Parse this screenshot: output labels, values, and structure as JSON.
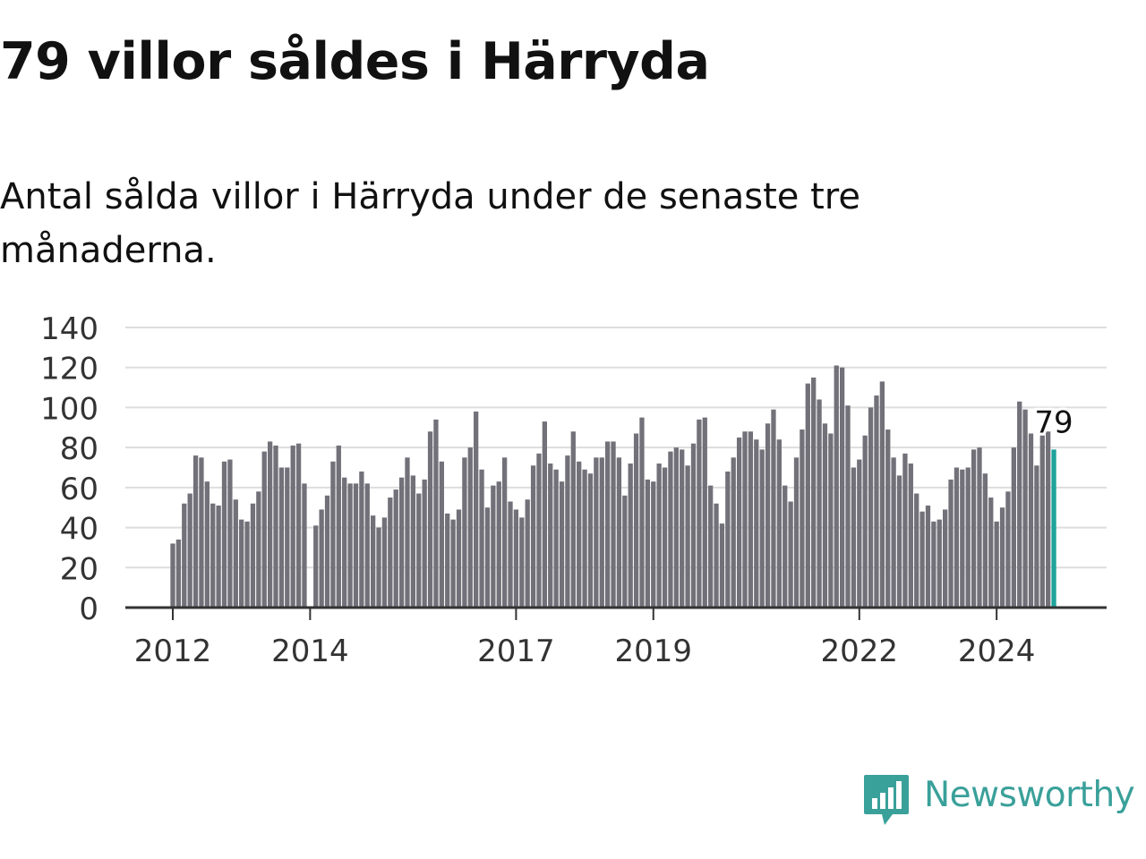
{
  "header": {
    "title": "79 villor såldes i Härryda",
    "subtitle": "Antal sålda villor i Härryda under de senaste tre månaderna."
  },
  "brand": {
    "name": "Newsworthy",
    "icon": "newsworthy-logo-icon",
    "color": "#3aa09a"
  },
  "colors": {
    "bar": "#727179",
    "highlight": "#1fa39b",
    "grid": "#dddddd",
    "axis": "#333333"
  },
  "chart_data": {
    "type": "bar",
    "title": "79 villor såldes i Härryda",
    "subtitle": "Antal sålda villor i Härryda under de senaste tre månaderna.",
    "xlabel": "",
    "ylabel": "",
    "ylim": [
      0,
      140
    ],
    "yticks": [
      0,
      20,
      40,
      60,
      80,
      100,
      120,
      140
    ],
    "grid": true,
    "x_tick_labels": [
      "2012",
      "2014",
      "2017",
      "2019",
      "2022",
      "2024"
    ],
    "x_tick_positions": [
      0,
      24,
      60,
      84,
      120,
      144
    ],
    "start": "2012-03",
    "frequency": "monthly",
    "highlight_label": "79",
    "values": [
      32,
      34,
      52,
      57,
      76,
      75,
      63,
      52,
      51,
      73,
      74,
      54,
      44,
      43,
      52,
      58,
      78,
      83,
      81,
      70,
      70,
      81,
      82,
      62,
      0,
      41,
      49,
      56,
      73,
      81,
      65,
      62,
      62,
      68,
      62,
      46,
      40,
      45,
      55,
      59,
      65,
      75,
      66,
      57,
      64,
      88,
      94,
      73,
      47,
      44,
      49,
      75,
      80,
      98,
      69,
      50,
      61,
      63,
      75,
      53,
      49,
      45,
      54,
      71,
      77,
      93,
      72,
      69,
      63,
      76,
      88,
      73,
      69,
      67,
      75,
      75,
      83,
      83,
      75,
      56,
      72,
      87,
      95,
      64,
      63,
      72,
      70,
      78,
      80,
      79,
      71,
      82,
      94,
      95,
      61,
      52,
      42,
      68,
      75,
      85,
      88,
      88,
      84,
      79,
      92,
      99,
      84,
      61,
      53,
      75,
      89,
      112,
      115,
      104,
      92,
      87,
      121,
      120,
      101,
      70,
      74,
      86,
      100,
      106,
      113,
      89,
      75,
      66,
      77,
      72,
      57,
      48,
      51,
      43,
      44,
      49,
      64,
      70,
      69,
      70,
      79,
      80,
      67,
      55,
      43,
      50,
      58,
      80,
      103,
      99,
      87,
      71,
      86,
      88,
      79
    ]
  }
}
